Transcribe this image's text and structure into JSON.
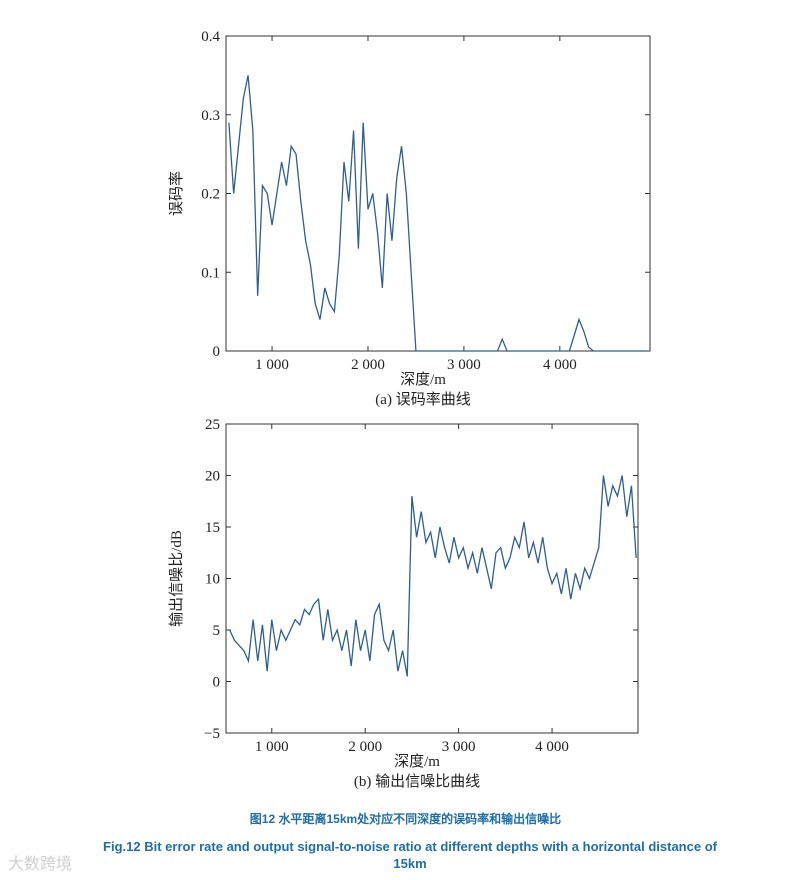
{
  "chart_data": [
    {
      "type": "line",
      "subtitle": "(a) 误码率曲线",
      "x_label": "深度/m",
      "y_label": "误码率",
      "color": "#2f5f8f",
      "x": [
        550,
        600,
        650,
        700,
        750,
        800,
        850,
        900,
        950,
        1000,
        1050,
        1100,
        1150,
        1200,
        1250,
        1300,
        1350,
        1400,
        1450,
        1500,
        1550,
        1600,
        1650,
        1700,
        1750,
        1800,
        1850,
        1900,
        1950,
        2000,
        2050,
        2100,
        2150,
        2200,
        2250,
        2300,
        2350,
        2400,
        2450,
        2500,
        2550,
        2600,
        2650,
        2700,
        2750,
        2800,
        2850,
        2900,
        2950,
        3000,
        3050,
        3100,
        3150,
        3200,
        3250,
        3300,
        3350,
        3400,
        3450,
        3500,
        3550,
        3600,
        3650,
        3700,
        3750,
        3800,
        3850,
        3900,
        3950,
        4000,
        4050,
        4100,
        4150,
        4200,
        4250,
        4300,
        4350,
        4400,
        4450,
        4500,
        4550,
        4600,
        4650,
        4700,
        4750,
        4800,
        4850,
        4900
      ],
      "values": [
        0.29,
        0.2,
        0.26,
        0.32,
        0.35,
        0.28,
        0.07,
        0.21,
        0.2,
        0.16,
        0.2,
        0.24,
        0.21,
        0.26,
        0.25,
        0.19,
        0.14,
        0.11,
        0.06,
        0.04,
        0.08,
        0.06,
        0.05,
        0.12,
        0.24,
        0.19,
        0.28,
        0.13,
        0.29,
        0.18,
        0.2,
        0.15,
        0.08,
        0.2,
        0.14,
        0.22,
        0.26,
        0.2,
        0.1,
        0,
        0,
        0,
        0,
        0,
        0,
        0,
        0,
        0,
        0,
        0,
        0,
        0,
        0,
        0,
        0,
        0,
        0,
        0.015,
        0,
        0,
        0,
        0,
        0,
        0,
        0,
        0,
        0,
        0,
        0,
        0,
        0,
        0,
        0.02,
        0.04,
        0.025,
        0.005,
        0,
        0,
        0,
        0,
        0,
        0,
        0,
        0,
        0,
        0,
        0,
        0
      ],
      "xlim": [
        520,
        4940
      ],
      "ylim": [
        0,
        0.4
      ],
      "xticks": [
        {
          "value": 1000,
          "label": "1 000"
        },
        {
          "value": 2000,
          "label": "2 000"
        },
        {
          "value": 3000,
          "label": "3 000"
        },
        {
          "value": 4000,
          "label": "4 000"
        }
      ],
      "yticks": [
        0,
        0.1,
        0.2,
        0.3,
        0.4
      ]
    },
    {
      "type": "line",
      "subtitle": "(b) 输出信噪比曲线",
      "x_label": "深度/m",
      "y_label": "输出信噪比/dB",
      "color": "#2f5f8f",
      "x": [
        550,
        600,
        650,
        700,
        750,
        800,
        850,
        900,
        950,
        1000,
        1050,
        1100,
        1150,
        1200,
        1250,
        1300,
        1350,
        1400,
        1450,
        1500,
        1550,
        1600,
        1650,
        1700,
        1750,
        1800,
        1850,
        1900,
        1950,
        2000,
        2050,
        2100,
        2150,
        2200,
        2250,
        2300,
        2350,
        2400,
        2450,
        2500,
        2550,
        2600,
        2650,
        2700,
        2750,
        2800,
        2850,
        2900,
        2950,
        3000,
        3050,
        3100,
        3150,
        3200,
        3250,
        3300,
        3350,
        3400,
        3450,
        3500,
        3550,
        3600,
        3650,
        3700,
        3750,
        3800,
        3850,
        3900,
        3950,
        4000,
        4050,
        4100,
        4150,
        4200,
        4250,
        4300,
        4350,
        4400,
        4450,
        4500,
        4550,
        4600,
        4650,
        4700,
        4750,
        4800,
        4850,
        4900
      ],
      "values": [
        5,
        4,
        3.5,
        3,
        2,
        6,
        2,
        5.5,
        1,
        6,
        3,
        5,
        4,
        5,
        6,
        5.5,
        7,
        6.5,
        7.5,
        8,
        4,
        7,
        4,
        5,
        3,
        5,
        1.5,
        6,
        3,
        5,
        2,
        6.5,
        7.5,
        4,
        3,
        5,
        1,
        3,
        0.5,
        18,
        14,
        16.5,
        13.5,
        14.5,
        12,
        15,
        13,
        11.5,
        14,
        12,
        13,
        11,
        12.5,
        10.5,
        13,
        11,
        9,
        12.5,
        13,
        11,
        12,
        14,
        13,
        15.5,
        12,
        13.5,
        11.5,
        14,
        11,
        9.5,
        10.5,
        8.5,
        11,
        8,
        10.5,
        9,
        11,
        10,
        11.5,
        13,
        20,
        17,
        19,
        18,
        20,
        16,
        19,
        12
      ],
      "xlim": [
        510,
        4920
      ],
      "ylim": [
        -5,
        25
      ],
      "xticks": [
        {
          "value": 1000,
          "label": "1 000"
        },
        {
          "value": 2000,
          "label": "2 000"
        },
        {
          "value": 3000,
          "label": "3 000"
        },
        {
          "value": 4000,
          "label": "4 000"
        }
      ],
      "yticks": [
        {
          "value": -5,
          "label": "−5"
        },
        0,
        5,
        10,
        15,
        20,
        25
      ]
    }
  ],
  "caption_cn": "图12 水平距离15km处对应不同深度的误码率和输出信噪比",
  "caption_en": "Fig.12 Bit error rate and output signal-to-noise ratio at different depths with a horizontal distance of 15km",
  "watermark": "大数跨境"
}
